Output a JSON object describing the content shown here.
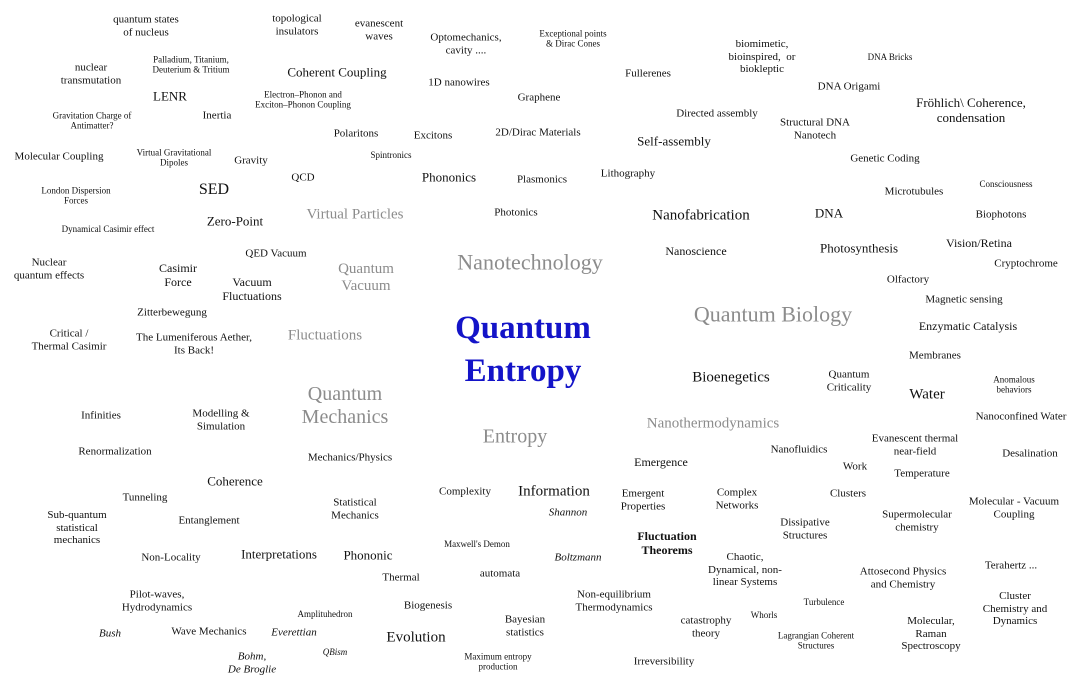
{
  "title": "Quantum\nEntropy",
  "colors": {
    "title": "#1414c8",
    "major": "#8c8c8c",
    "minor": "#111111"
  },
  "terms": [
    {
      "text": "quantum states\nof nucleus",
      "style": "normal"
    },
    {
      "text": "topological\ninsulators",
      "style": "normal"
    },
    {
      "text": "evanescent\nwaves",
      "style": "normal"
    },
    {
      "text": "Optomechanics,\ncavity ....",
      "style": "normal"
    },
    {
      "text": "Exceptional points\n& Dirac Cones",
      "style": "normal"
    },
    {
      "text": "biomimetic,\nbioinspired,  or\nbiokleptic",
      "style": "normal"
    },
    {
      "text": "DNA Bricks",
      "style": "normal"
    },
    {
      "text": "nuclear\ntransmutation",
      "style": "normal"
    },
    {
      "text": "Palladium, Titanium,\nDeuterium & Tritium",
      "style": "normal"
    },
    {
      "text": "Coherent Coupling",
      "style": "normal"
    },
    {
      "text": "1D nanowires",
      "style": "normal"
    },
    {
      "text": "Fullerenes",
      "style": "normal"
    },
    {
      "text": "DNA Origami",
      "style": "normal"
    },
    {
      "text": "LENR",
      "style": "normal"
    },
    {
      "text": "Electron–Phonon and\nExciton–Phonon Coupling",
      "style": "normal"
    },
    {
      "text": "Graphene",
      "style": "normal"
    },
    {
      "text": "Fröhlich\\ Coherence,\ncondensation",
      "style": "normal"
    },
    {
      "text": "Gravitation Charge of\nAntimatter?",
      "style": "normal"
    },
    {
      "text": "Inertia",
      "style": "normal"
    },
    {
      "text": "Directed assembly",
      "style": "normal"
    },
    {
      "text": "Structural DNA\nNanotech",
      "style": "normal"
    },
    {
      "text": "Polaritons",
      "style": "normal"
    },
    {
      "text": "Excitons",
      "style": "normal"
    },
    {
      "text": "2D/Dirac Materials",
      "style": "normal"
    },
    {
      "text": "Self-assembly",
      "style": "normal"
    },
    {
      "text": "Molecular Coupling",
      "style": "normal"
    },
    {
      "text": "Virtual Gravitational\nDipoles",
      "style": "normal"
    },
    {
      "text": "Gravity",
      "style": "normal"
    },
    {
      "text": "Spintronics",
      "style": "normal"
    },
    {
      "text": "Genetic Coding",
      "style": "normal"
    },
    {
      "text": "QCD",
      "style": "normal"
    },
    {
      "text": "Phononics",
      "style": "normal"
    },
    {
      "text": "Plasmonics",
      "style": "normal"
    },
    {
      "text": "Lithography",
      "style": "normal"
    },
    {
      "text": "Consciousness",
      "style": "normal"
    },
    {
      "text": "London Dispersion\nForces",
      "style": "normal"
    },
    {
      "text": "SED",
      "style": "normal"
    },
    {
      "text": "Microtubules",
      "style": "normal"
    },
    {
      "text": "Virtual Particles",
      "style": "gray"
    },
    {
      "text": "Photonics",
      "style": "normal"
    },
    {
      "text": "Nanofabrication",
      "style": "normal"
    },
    {
      "text": "DNA",
      "style": "normal"
    },
    {
      "text": "Biophotons",
      "style": "normal"
    },
    {
      "text": "Zero-Point",
      "style": "normal"
    },
    {
      "text": "Dynamical Casimir effect",
      "style": "normal"
    },
    {
      "text": "Vision/Retina",
      "style": "normal"
    },
    {
      "text": "Nanoscience",
      "style": "normal"
    },
    {
      "text": "Photosynthesis",
      "style": "normal"
    },
    {
      "text": "QED Vacuum",
      "style": "normal"
    },
    {
      "text": "Nanotechnology",
      "style": "gray"
    },
    {
      "text": "Nuclear\nquantum effects",
      "style": "normal"
    },
    {
      "text": "Cryptochrome",
      "style": "normal"
    },
    {
      "text": "Casimir\nForce",
      "style": "normal"
    },
    {
      "text": "Quantum\nVacuum",
      "style": "gray"
    },
    {
      "text": "Olfactory",
      "style": "normal"
    },
    {
      "text": "Vacuum\nFluctuations",
      "style": "normal"
    },
    {
      "text": "Magnetic sensing",
      "style": "normal"
    },
    {
      "text": "Zitterbewegung",
      "style": "normal"
    },
    {
      "text": "Quantum Biology",
      "style": "gray"
    },
    {
      "text": "Enzymatic Catalysis",
      "style": "normal"
    },
    {
      "text": "Critical /\nThermal Casimir",
      "style": "normal"
    },
    {
      "text": "The Lumeniferous Aether,\nIts Back!",
      "style": "normal"
    },
    {
      "text": "Fluctuations",
      "style": "gray"
    },
    {
      "text": "Membranes",
      "style": "normal"
    },
    {
      "text": "Quantum\nCriticality",
      "style": "normal"
    },
    {
      "text": "Bioenegetics",
      "style": "normal"
    },
    {
      "text": "Anomalous\nbehaviors",
      "style": "normal"
    },
    {
      "text": "Water",
      "style": "normal"
    },
    {
      "text": "Quantum\nMechanics",
      "style": "gray"
    },
    {
      "text": "Infinities",
      "style": "normal"
    },
    {
      "text": "Modelling &\nSimulation",
      "style": "normal"
    },
    {
      "text": "Nanothermodynamics",
      "style": "gray"
    },
    {
      "text": "Nanoconfined Water",
      "style": "normal"
    },
    {
      "text": "Entropy",
      "style": "gray"
    },
    {
      "text": "Evanescent thermal\nnear-field",
      "style": "normal"
    },
    {
      "text": "Renormalization",
      "style": "normal"
    },
    {
      "text": "Nanofluidics",
      "style": "normal"
    },
    {
      "text": "Desalination",
      "style": "normal"
    },
    {
      "text": "Mechanics/Physics",
      "style": "normal"
    },
    {
      "text": "Emergence",
      "style": "normal"
    },
    {
      "text": "Work",
      "style": "normal"
    },
    {
      "text": "Temperature",
      "style": "normal"
    },
    {
      "text": "Coherence",
      "style": "normal"
    },
    {
      "text": "Information",
      "style": "normal"
    },
    {
      "text": "Complexity",
      "style": "normal"
    },
    {
      "text": "Emergent\nProperties",
      "style": "normal"
    },
    {
      "text": "Complex\nNetworks",
      "style": "normal"
    },
    {
      "text": "Clusters",
      "style": "normal"
    },
    {
      "text": "Tunneling",
      "style": "normal"
    },
    {
      "text": "Statistical\nMechanics",
      "style": "normal"
    },
    {
      "text": "Molecular - Vacuum\nCoupling",
      "style": "normal"
    },
    {
      "text": "Sub-quantum\nstatistical\nmechanics",
      "style": "normal"
    },
    {
      "text": "Shannon",
      "style": "italic"
    },
    {
      "text": "Supermolecular\nchemistry",
      "style": "normal"
    },
    {
      "text": "Entanglement",
      "style": "normal"
    },
    {
      "text": "Dissipative\nStructures",
      "style": "normal"
    },
    {
      "text": "Fluctuation\nTheorems",
      "style": "bold"
    },
    {
      "text": "Maxwell's Demon",
      "style": "normal"
    },
    {
      "text": "Non-Locality",
      "style": "normal"
    },
    {
      "text": "Interpretations",
      "style": "normal"
    },
    {
      "text": "Phononic",
      "style": "normal"
    },
    {
      "text": "Boltzmann",
      "style": "italic"
    },
    {
      "text": "Chaotic,\nDynamical, non-\nlinear Systems",
      "style": "normal"
    },
    {
      "text": "Terahertz ...",
      "style": "normal"
    },
    {
      "text": "Thermal",
      "style": "normal"
    },
    {
      "text": "automata",
      "style": "normal"
    },
    {
      "text": "Attosecond Physics\nand Chemistry",
      "style": "normal"
    },
    {
      "text": "Pilot-waves,\nHydrodynamics",
      "style": "normal"
    },
    {
      "text": "Non-equilibrium\nThermodynamics",
      "style": "normal"
    },
    {
      "text": "Turbulence",
      "style": "normal"
    },
    {
      "text": "Cluster\nChemistry and\nDynamics",
      "style": "normal"
    },
    {
      "text": "Biogenesis",
      "style": "normal"
    },
    {
      "text": "Amplituhedron",
      "style": "normal"
    },
    {
      "text": "Whorls",
      "style": "normal"
    },
    {
      "text": "Bayesian\nstatistics",
      "style": "normal"
    },
    {
      "text": "catastrophy\ntheory",
      "style": "normal"
    },
    {
      "text": "Molecular,\nRaman\nSpectroscopy",
      "style": "normal"
    },
    {
      "text": "Bush",
      "style": "italic"
    },
    {
      "text": "Wave Mechanics",
      "style": "normal"
    },
    {
      "text": "Everettian",
      "style": "italic"
    },
    {
      "text": "Evolution",
      "style": "normal"
    },
    {
      "text": "Lagrangian Coherent\nStructures",
      "style": "normal"
    },
    {
      "text": "QBism",
      "style": "italic"
    },
    {
      "text": "Bohm,\nDe Broglie",
      "style": "italic"
    },
    {
      "text": "Maximum entropy\nproduction",
      "style": "normal"
    },
    {
      "text": "Irreversibility",
      "style": "normal"
    }
  ]
}
